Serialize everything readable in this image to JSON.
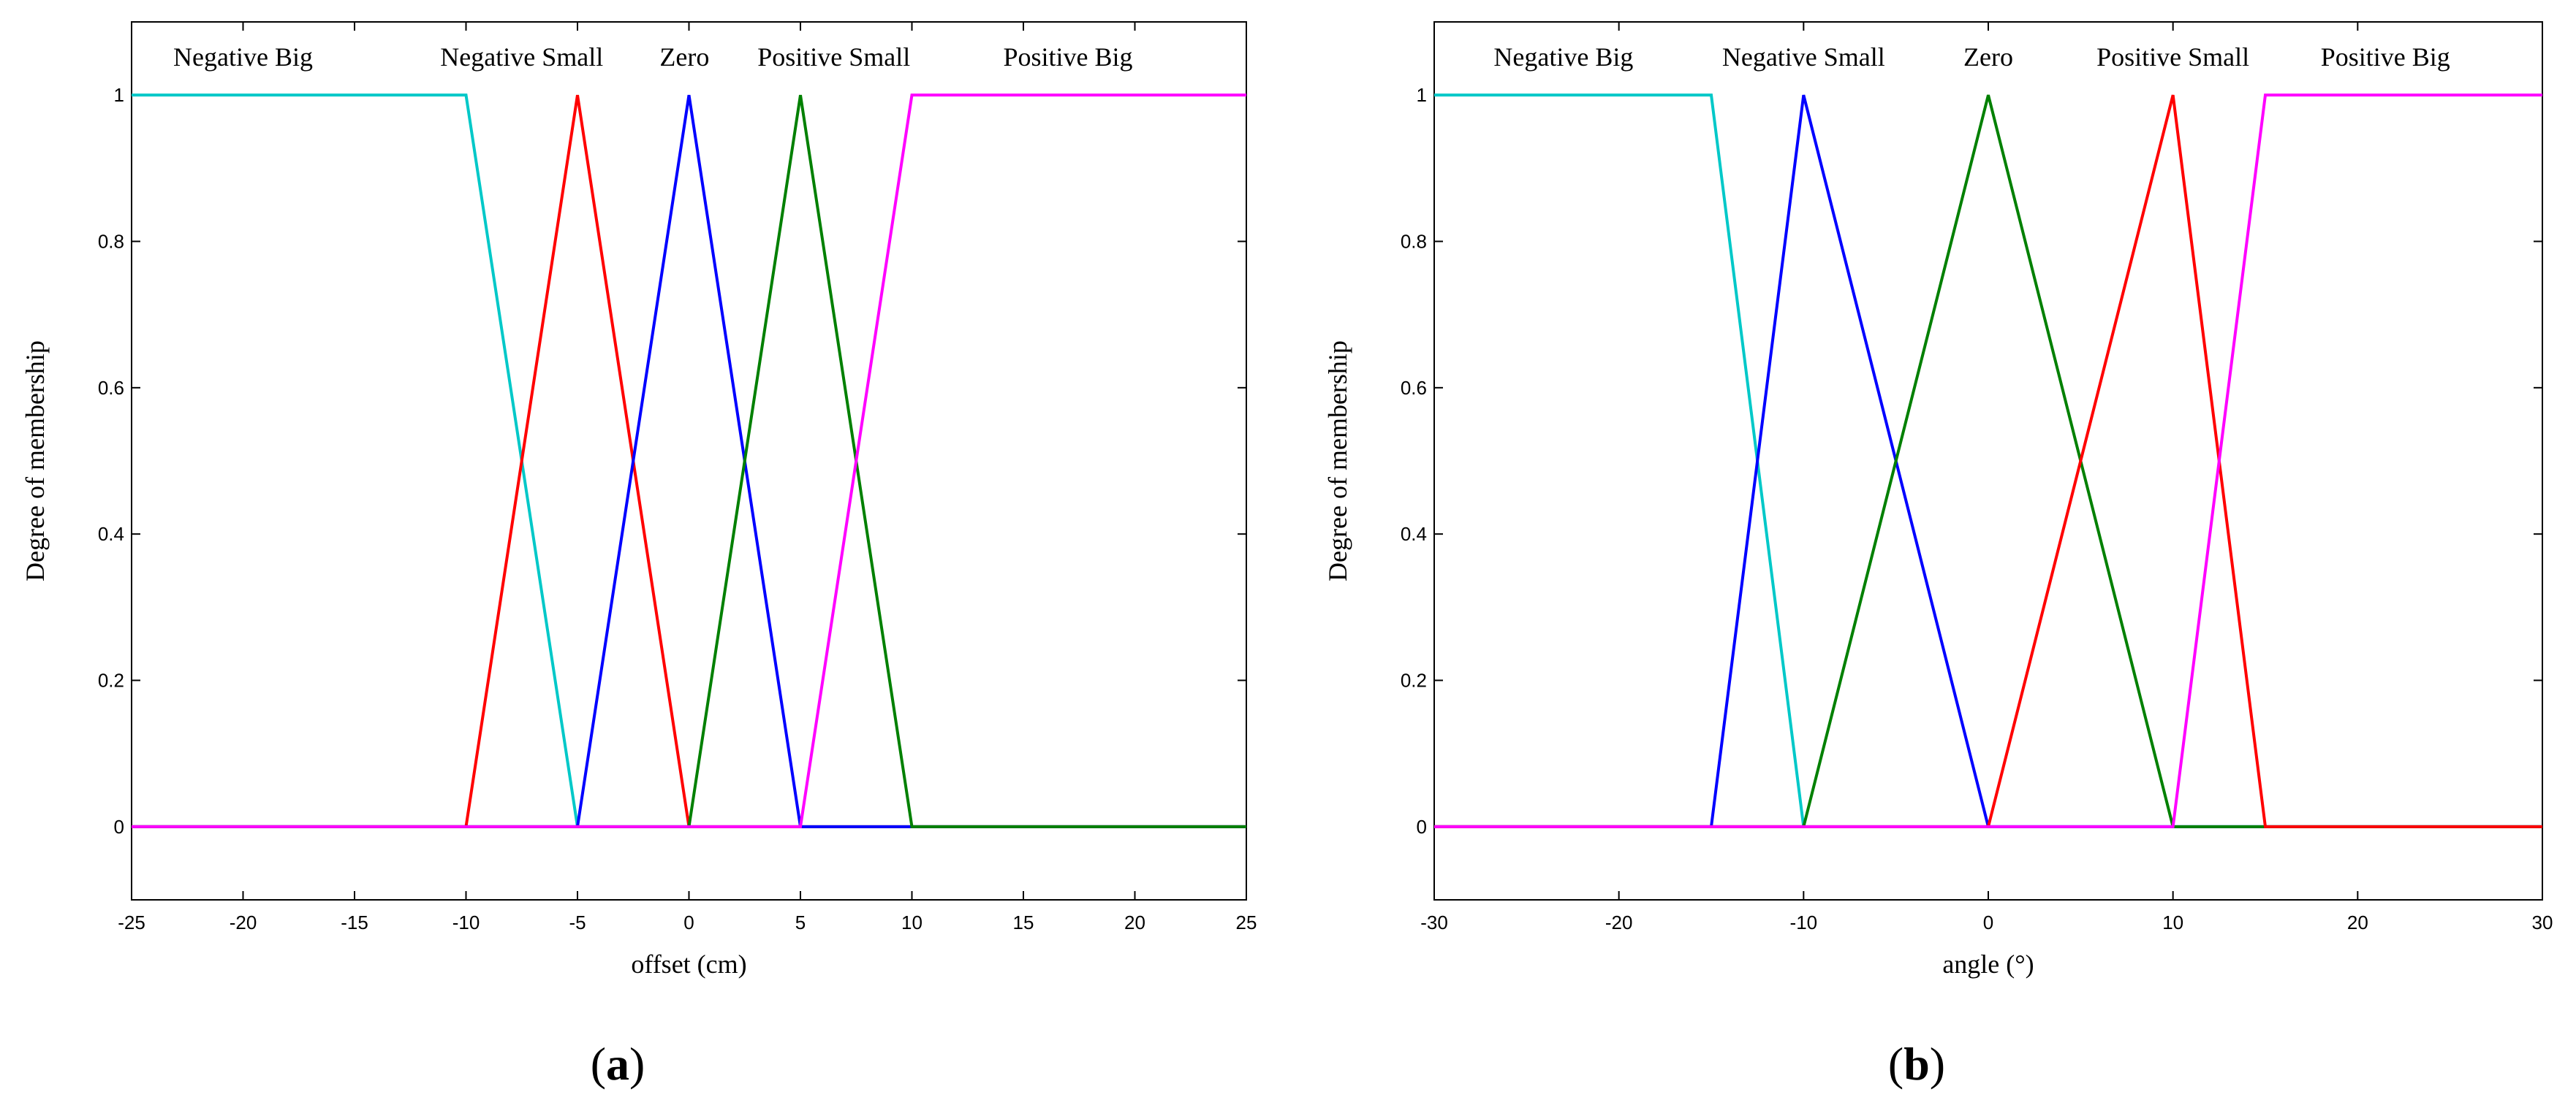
{
  "chart_data": [
    {
      "type": "line",
      "panel": "a",
      "panel_label": "a",
      "xlabel": "offset (cm)",
      "ylabel": "Degree of membership",
      "xlim": [
        -25,
        25
      ],
      "ylim": [
        -0.1,
        1.1
      ],
      "xticks": [
        -25,
        -20,
        -15,
        -10,
        -5,
        0,
        5,
        10,
        15,
        20,
        25
      ],
      "yticks": [
        0,
        0.2,
        0.4,
        0.6,
        0.8,
        1
      ],
      "series": [
        {
          "name": "Negative Big",
          "color": "#00c8c8",
          "x": [
            -25,
            -10,
            -5,
            25
          ],
          "y": [
            1,
            1,
            0,
            0
          ],
          "label_x": -20
        },
        {
          "name": "Negative Small",
          "color": "#ff0000",
          "x": [
            -25,
            -10,
            -5,
            0,
            25
          ],
          "y": [
            0,
            0,
            1,
            0,
            0
          ],
          "label_x": -7.5
        },
        {
          "name": "Zero",
          "color": "#0000ff",
          "x": [
            -25,
            -5,
            0,
            5,
            25
          ],
          "y": [
            0,
            0,
            1,
            0,
            0
          ],
          "label_x": -0.2
        },
        {
          "name": "Positive Small",
          "color": "#008000",
          "x": [
            -25,
            0,
            5,
            10,
            25
          ],
          "y": [
            0,
            0,
            1,
            0,
            0
          ],
          "label_x": 6.5
        },
        {
          "name": "Positive Big",
          "color": "#ff00ff",
          "x": [
            -25,
            5,
            10,
            25
          ],
          "y": [
            0,
            0,
            1,
            1
          ],
          "label_x": 17
        }
      ]
    },
    {
      "type": "line",
      "panel": "b",
      "panel_label": "b",
      "xlabel": "angle (°)",
      "ylabel": "Degree of membership",
      "xlim": [
        -30,
        30
      ],
      "ylim": [
        -0.1,
        1.1
      ],
      "xticks": [
        -30,
        -20,
        -10,
        0,
        10,
        20,
        30
      ],
      "yticks": [
        0,
        0.2,
        0.4,
        0.6,
        0.8,
        1
      ],
      "series": [
        {
          "name": "Negative Big",
          "color": "#00c8c8",
          "x": [
            -30,
            -15,
            -10,
            30
          ],
          "y": [
            1,
            1,
            0,
            0
          ],
          "label_x": -23
        },
        {
          "name": "Negative Small",
          "color": "#0000ff",
          "x": [
            -30,
            -15,
            -10,
            0,
            30
          ],
          "y": [
            0,
            0,
            1,
            0,
            0
          ],
          "label_x": -10
        },
        {
          "name": "Zero",
          "color": "#008000",
          "x": [
            -30,
            -10,
            0,
            10,
            30
          ],
          "y": [
            0,
            0,
            1,
            0,
            0
          ],
          "label_x": 0
        },
        {
          "name": "Positive Small",
          "color": "#ff0000",
          "x": [
            -30,
            0,
            10,
            15,
            30
          ],
          "y": [
            0,
            0,
            1,
            0,
            0
          ],
          "label_x": 10
        },
        {
          "name": "Positive Big",
          "color": "#ff00ff",
          "x": [
            -30,
            10,
            15,
            30
          ],
          "y": [
            0,
            0,
            1,
            1
          ],
          "label_x": 21.5
        }
      ]
    }
  ]
}
